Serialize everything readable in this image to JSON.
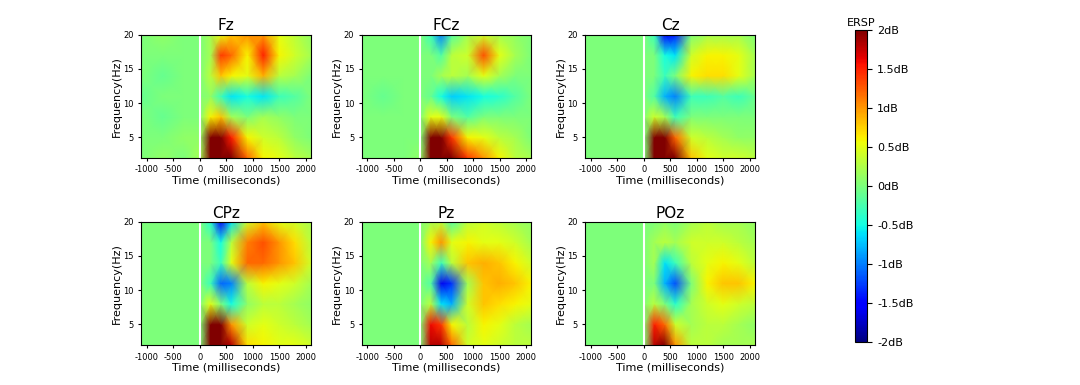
{
  "chart_data": [
    {
      "type": "heatmap",
      "title": "Fz",
      "xlabel": "Time (milliseconds)",
      "ylabel": "Frequency(Hz)",
      "x": [
        -1100,
        -700,
        -300,
        0,
        200,
        400,
        600,
        900,
        1200,
        1500,
        1800,
        2100
      ],
      "y": [
        2,
        5,
        8,
        11,
        14,
        17,
        20
      ],
      "values": [
        [
          0,
          0.1,
          0,
          0.2,
          2.5,
          2.5,
          2.2,
          1.2,
          0.6,
          0.5,
          0.3,
          0.2
        ],
        [
          0,
          0,
          0.1,
          0.1,
          2.2,
          2.3,
          1.5,
          0.6,
          0.4,
          0.3,
          0.1,
          0
        ],
        [
          0,
          -0.1,
          0,
          0,
          0.6,
          0.8,
          0.2,
          0,
          0.2,
          0.1,
          0,
          0
        ],
        [
          -0.1,
          0,
          0,
          0,
          0.1,
          -0.3,
          -0.6,
          -0.5,
          -0.6,
          -0.3,
          -0.2,
          0
        ],
        [
          0,
          -0.1,
          0,
          0,
          0.3,
          0.8,
          0.6,
          0.5,
          0.9,
          0.3,
          0.2,
          0
        ],
        [
          0,
          0,
          0,
          0,
          0.2,
          1.4,
          1.2,
          0.6,
          1.5,
          0.6,
          0.4,
          0.2
        ],
        [
          0,
          0.1,
          0,
          0,
          0.2,
          0.5,
          0.8,
          1.0,
          1.0,
          0.5,
          0.3,
          0.1
        ]
      ],
      "onset": 0,
      "xlim": [
        -1100,
        2100
      ],
      "ylim": [
        2,
        20
      ],
      "xticks": [
        -1000,
        -500,
        0,
        500,
        1000,
        1500,
        2000
      ],
      "yticks": [
        5,
        10,
        15,
        20
      ]
    },
    {
      "type": "heatmap",
      "title": "FCz",
      "xlabel": "Time (milliseconds)",
      "ylabel": "Frequency(Hz)",
      "x": [
        -1100,
        -700,
        -300,
        0,
        200,
        400,
        600,
        900,
        1200,
        1500,
        1800,
        2100
      ],
      "y": [
        2,
        5,
        8,
        11,
        14,
        17,
        20
      ],
      "values": [
        [
          0,
          0,
          0,
          0.1,
          2.6,
          2.6,
          2.2,
          1.4,
          1.0,
          0.6,
          0.3,
          0.2
        ],
        [
          0,
          0,
          0,
          0,
          2.3,
          2.2,
          1.4,
          0.6,
          0.5,
          0.3,
          0.2,
          0
        ],
        [
          0,
          0,
          0,
          0,
          0.5,
          0.5,
          0,
          -0.2,
          0,
          0,
          0,
          0
        ],
        [
          0,
          -0.1,
          0,
          0,
          -0.1,
          -0.5,
          -0.7,
          -0.6,
          -0.5,
          -0.4,
          -0.2,
          0
        ],
        [
          0,
          0,
          0,
          0,
          0,
          0.2,
          0.3,
          0.2,
          0.5,
          0.2,
          0,
          0
        ],
        [
          0,
          0,
          0,
          0,
          0,
          -0.2,
          0.3,
          0.4,
          1.3,
          0.5,
          0.2,
          0
        ],
        [
          0,
          0,
          0,
          0,
          -0.3,
          -1.0,
          -0.2,
          0.2,
          0.4,
          0.2,
          0.1,
          0
        ]
      ],
      "onset": 0,
      "xlim": [
        -1100,
        2100
      ],
      "ylim": [
        2,
        20
      ],
      "xticks": [
        -1000,
        -500,
        0,
        500,
        1000,
        1500,
        2000
      ],
      "yticks": [
        5,
        10,
        15,
        20
      ]
    },
    {
      "type": "heatmap",
      "title": "Cz",
      "xlabel": "Time (milliseconds)",
      "ylabel": "Frequency(Hz)",
      "x": [
        -1100,
        -700,
        -300,
        0,
        200,
        400,
        600,
        900,
        1200,
        1500,
        1800,
        2100
      ],
      "y": [
        2,
        5,
        8,
        11,
        14,
        17,
        20
      ],
      "values": [
        [
          0,
          0,
          0,
          0,
          2.4,
          2.6,
          2.0,
          0.8,
          0.5,
          0.4,
          0.4,
          0.3
        ],
        [
          0,
          0,
          0,
          0,
          2.3,
          2.3,
          1.2,
          0.4,
          0.3,
          0.2,
          0.1,
          0.1
        ],
        [
          0,
          0,
          0,
          0,
          0.4,
          0.2,
          -0.3,
          0,
          0,
          0,
          0,
          0
        ],
        [
          0,
          0,
          0,
          0,
          -0.2,
          -0.8,
          -1.0,
          -0.3,
          -0.3,
          -0.2,
          -0.3,
          -0.1
        ],
        [
          0,
          0,
          0,
          0,
          0,
          -0.3,
          0,
          0.6,
          0.7,
          0.7,
          0.5,
          0.2
        ],
        [
          0,
          0,
          0,
          0,
          0,
          -0.5,
          -0.6,
          0.4,
          0.6,
          0.6,
          0.5,
          0.2
        ],
        [
          0,
          0,
          0,
          0,
          -0.3,
          -1.5,
          -1.4,
          0,
          0.2,
          0.2,
          0.2,
          0
        ]
      ],
      "onset": 0,
      "xlim": [
        -1100,
        2100
      ],
      "ylim": [
        2,
        20
      ],
      "xticks": [
        -1000,
        -500,
        0,
        500,
        1000,
        1500,
        2000
      ],
      "yticks": [
        5,
        10,
        15,
        20
      ]
    },
    {
      "type": "heatmap",
      "title": "CPz",
      "xlabel": "Time (milliseconds)",
      "ylabel": "Frequency(Hz)",
      "x": [
        -1100,
        -700,
        -300,
        0,
        200,
        400,
        600,
        900,
        1200,
        1500,
        1800,
        2100
      ],
      "y": [
        2,
        5,
        8,
        11,
        14,
        17,
        20
      ],
      "values": [
        [
          0,
          0,
          0,
          0,
          2.2,
          2.5,
          1.8,
          0.7,
          0.6,
          0.5,
          0.5,
          0.4
        ],
        [
          0,
          0,
          0,
          0,
          2.0,
          2.2,
          1.0,
          0.4,
          0.5,
          0.4,
          0.3,
          0.2
        ],
        [
          0,
          0,
          0,
          0,
          0.5,
          0,
          -0.5,
          0.1,
          0.3,
          0.3,
          0.2,
          0.1
        ],
        [
          0,
          0,
          0,
          0,
          -0.3,
          -1.1,
          -1.0,
          0.3,
          0.6,
          0.5,
          0.4,
          0.2
        ],
        [
          0,
          0,
          0,
          0,
          0,
          -0.3,
          0.5,
          1.2,
          1.2,
          1.0,
          0.8,
          0.4
        ],
        [
          0,
          0,
          0,
          0,
          0,
          -0.5,
          0.3,
          1.1,
          1.3,
          1.0,
          0.7,
          0.3
        ],
        [
          0,
          0,
          0,
          0,
          -0.4,
          -1.5,
          -0.6,
          0.4,
          0.8,
          0.5,
          0.4,
          0.2
        ]
      ],
      "onset": 0,
      "xlim": [
        -1100,
        2100
      ],
      "ylim": [
        2,
        20
      ],
      "xticks": [
        -1000,
        -500,
        0,
        500,
        1000,
        1500,
        2000
      ],
      "yticks": [
        5,
        10,
        15,
        20
      ]
    },
    {
      "type": "heatmap",
      "title": "Pz",
      "xlabel": "Time (milliseconds)",
      "ylabel": "Frequency(Hz)",
      "x": [
        -1100,
        -700,
        -300,
        0,
        200,
        400,
        600,
        900,
        1200,
        1500,
        1800,
        2100
      ],
      "y": [
        2,
        5,
        8,
        11,
        14,
        17,
        20
      ],
      "values": [
        [
          0,
          0,
          0,
          0,
          1.8,
          1.8,
          1.2,
          0.4,
          0.5,
          0.4,
          0.3,
          0.3
        ],
        [
          0,
          0,
          0,
          0,
          1.6,
          1.4,
          0.6,
          0.3,
          0.6,
          0.5,
          0.3,
          0.2
        ],
        [
          0,
          0,
          0,
          0,
          0.3,
          -0.6,
          -0.8,
          0.4,
          0.8,
          0.7,
          0.6,
          0.5
        ],
        [
          0,
          0,
          0,
          0,
          -0.2,
          -1.6,
          -1.3,
          0.2,
          0.8,
          0.9,
          0.8,
          0.6
        ],
        [
          0,
          0,
          0,
          0,
          0.2,
          -0.3,
          0.3,
          0.8,
          0.9,
          0.8,
          0.6,
          0.4
        ],
        [
          0,
          0,
          0,
          0,
          0.6,
          1.0,
          0.5,
          0.6,
          0.5,
          0.5,
          0.4,
          0.2
        ],
        [
          0,
          0,
          0,
          0,
          0.2,
          0.3,
          -0.2,
          0.3,
          0.4,
          0.3,
          0.2,
          0.1
        ]
      ],
      "onset": 0,
      "xlim": [
        -1100,
        2100
      ],
      "ylim": [
        2,
        20
      ],
      "xticks": [
        -1000,
        -500,
        0,
        500,
        1000,
        1500,
        2000
      ],
      "yticks": [
        5,
        10,
        15,
        20
      ]
    },
    {
      "type": "heatmap",
      "title": "POz",
      "xlabel": "Time (milliseconds)",
      "ylabel": "Frequency(Hz)",
      "x": [
        -1100,
        -700,
        -300,
        0,
        200,
        400,
        600,
        900,
        1200,
        1500,
        1800,
        2100
      ],
      "y": [
        2,
        5,
        8,
        11,
        14,
        17,
        20
      ],
      "values": [
        [
          0,
          0,
          0,
          0,
          1.8,
          2.0,
          1.0,
          0.3,
          0.3,
          0.2,
          0.2,
          0.2
        ],
        [
          0,
          0,
          0,
          0,
          1.5,
          1.2,
          0.4,
          0.2,
          0.3,
          0.3,
          0.2,
          0.1
        ],
        [
          0,
          0,
          0,
          0,
          0.3,
          0,
          -0.4,
          0.2,
          0.4,
          0.5,
          0.4,
          0.3
        ],
        [
          0,
          0,
          0,
          0,
          0,
          -0.8,
          -1.2,
          0,
          0.6,
          0.8,
          0.8,
          0.6
        ],
        [
          0,
          0,
          0,
          0,
          0.2,
          -0.6,
          -0.3,
          0.3,
          0.5,
          0.6,
          0.5,
          0.3
        ],
        [
          0,
          0,
          0,
          0,
          0.2,
          0.3,
          0.2,
          0.4,
          0.4,
          0.4,
          0.3,
          0.2
        ],
        [
          0,
          0,
          0,
          0,
          0,
          0.1,
          0,
          0.2,
          0.3,
          0.2,
          0.2,
          0.1
        ]
      ],
      "onset": 0,
      "xlim": [
        -1100,
        2100
      ],
      "ylim": [
        2,
        20
      ],
      "xticks": [
        -1000,
        -500,
        0,
        500,
        1000,
        1500,
        2000
      ],
      "yticks": [
        5,
        10,
        15,
        20
      ]
    }
  ],
  "colorbar": {
    "label": "ERSP",
    "range": [
      -2,
      2
    ],
    "ticks": [
      {
        "value": -2,
        "label": "-2dB"
      },
      {
        "value": -1.5,
        "label": "-1.5dB"
      },
      {
        "value": -1,
        "label": "-1dB"
      },
      {
        "value": -0.5,
        "label": "-0.5dB"
      },
      {
        "value": 0,
        "label": "0dB"
      },
      {
        "value": 0.5,
        "label": "0.5dB"
      },
      {
        "value": 1,
        "label": "1dB"
      },
      {
        "value": 1.5,
        "label": "1.5dB"
      },
      {
        "value": 2,
        "label": "2dB"
      }
    ]
  }
}
